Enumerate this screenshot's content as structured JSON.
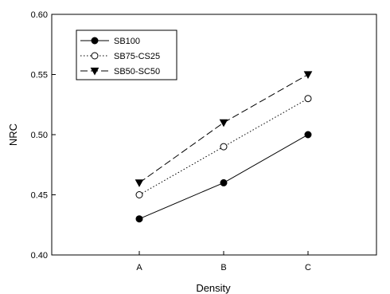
{
  "chart_data": {
    "type": "line",
    "categories": [
      "A",
      "B",
      "C"
    ],
    "xlabel": "Density",
    "ylabel": "NRC",
    "ylim": [
      0.4,
      0.6
    ],
    "yticks": [
      "0.40",
      "0.45",
      "0.50",
      "0.55",
      "0.60"
    ],
    "grid": false,
    "legend_position": "top-left",
    "series": [
      {
        "name": "SB100",
        "values": [
          0.43,
          0.46,
          0.5
        ],
        "line": "solid",
        "marker": "filled-circle",
        "color": "#000000"
      },
      {
        "name": "SB75-CS25",
        "values": [
          0.45,
          0.49,
          0.53
        ],
        "line": "dotted",
        "marker": "open-circle",
        "color": "#000000"
      },
      {
        "name": "SB50-SC50",
        "values": [
          0.46,
          0.51,
          0.55
        ],
        "line": "dashed",
        "marker": "filled-triangle-down",
        "color": "#000000"
      }
    ]
  }
}
